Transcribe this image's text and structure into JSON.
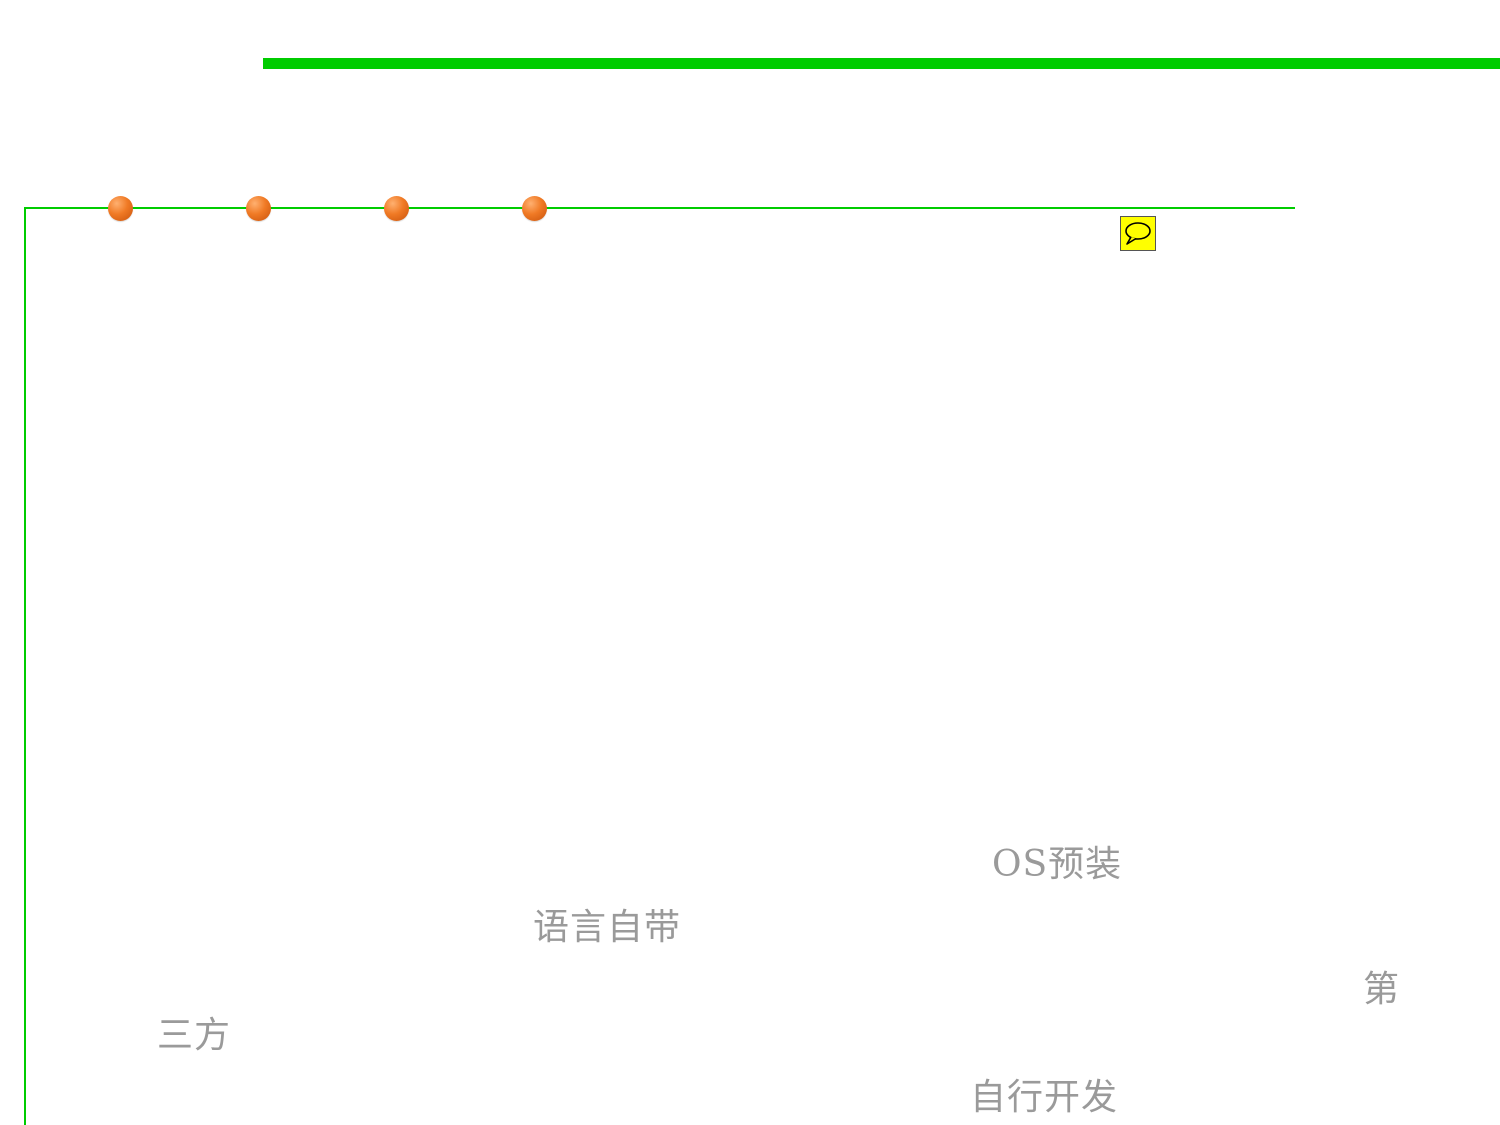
{
  "colors": {
    "accent_green": "#00cc00",
    "dot_orange": "#f07a25",
    "comment_yellow": "#ffff00",
    "label_gray": "#9a9a9a"
  },
  "comment_icon": "speech-bubble-icon",
  "labels": {
    "os_preinstalled": "OS预装",
    "language_builtin": "语言自带",
    "third_party_part1": "第",
    "third_party_part2": "三方",
    "self_developed": "自行开发"
  }
}
